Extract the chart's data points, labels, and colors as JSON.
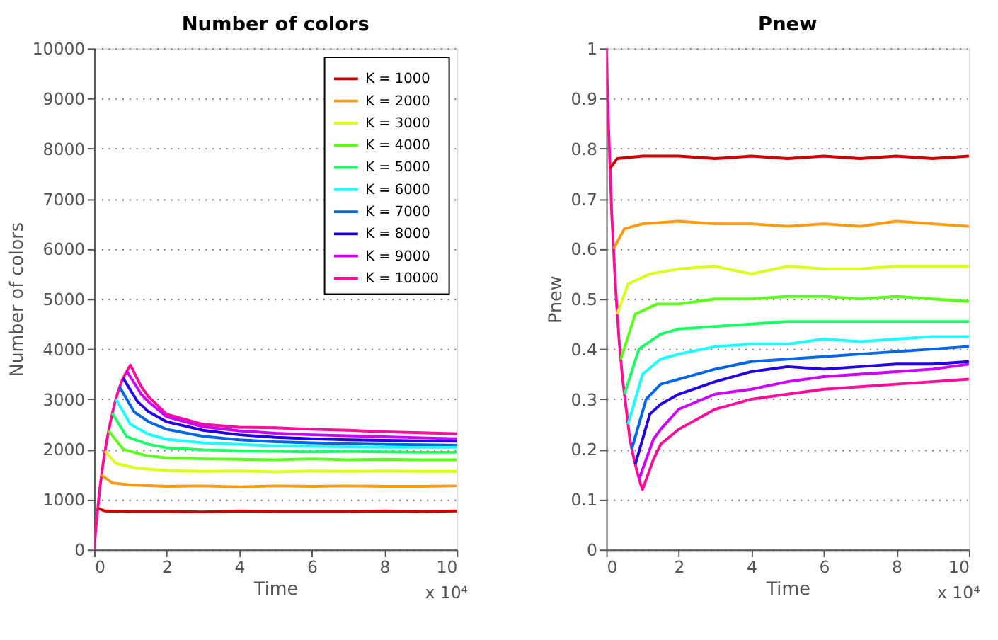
{
  "chart_data": [
    {
      "type": "line",
      "title": "Number of colors",
      "xlabel": "Time",
      "ylabel": "Number of colors",
      "annotations": [
        "x 10⁴"
      ],
      "xlim": [
        0,
        10
      ],
      "xticks": [
        0,
        2,
        4,
        6,
        8,
        10
      ],
      "ylim": [
        0,
        10000
      ],
      "yticks": [
        0,
        1000,
        2000,
        3000,
        4000,
        5000,
        6000,
        7000,
        8000,
        9000,
        10000
      ],
      "grid": "y",
      "legend": "top right",
      "line_style": "solid",
      "series": [
        {
          "name": "K = 1000",
          "color": "#cc0000",
          "x": [
            0.1,
            0.3,
            1,
            2,
            3,
            4,
            5,
            6,
            7,
            8,
            9,
            10
          ],
          "values": [
            820,
            770,
            760,
            760,
            750,
            770,
            760,
            760,
            760,
            770,
            760,
            770
          ]
        },
        {
          "name": "K = 2000",
          "color": "#ff9910",
          "x": [
            0.2,
            0.5,
            1,
            2,
            3,
            4,
            5,
            6,
            7,
            8,
            9,
            10
          ],
          "values": [
            1490,
            1330,
            1290,
            1260,
            1270,
            1250,
            1270,
            1260,
            1270,
            1260,
            1260,
            1270
          ]
        },
        {
          "name": "K = 3000",
          "color": "#d9ff1a",
          "x": [
            0.3,
            0.6,
            1.2,
            2,
            3,
            4,
            5,
            6,
            7,
            8,
            9,
            10
          ],
          "values": [
            1960,
            1720,
            1620,
            1580,
            1560,
            1570,
            1550,
            1570,
            1560,
            1570,
            1560,
            1560
          ]
        },
        {
          "name": "K = 4000",
          "color": "#5cff1a",
          "x": [
            0.4,
            0.8,
            1.4,
            2,
            3,
            4,
            5,
            6,
            7,
            8,
            9,
            10
          ],
          "values": [
            2370,
            2000,
            1880,
            1830,
            1810,
            1800,
            1790,
            1810,
            1790,
            1800,
            1790,
            1790
          ]
        },
        {
          "name": "K = 5000",
          "color": "#1aff66",
          "x": [
            0.5,
            0.9,
            1.5,
            2,
            3,
            4,
            5,
            6,
            7,
            8,
            9,
            10
          ],
          "values": [
            2720,
            2250,
            2100,
            2030,
            1990,
            1970,
            1960,
            1950,
            1960,
            1950,
            1940,
            1940
          ]
        },
        {
          "name": "K = 6000",
          "color": "#1affff",
          "x": [
            0.6,
            1,
            1.5,
            2,
            3,
            4,
            5,
            6,
            7,
            8,
            9,
            10
          ],
          "values": [
            3000,
            2500,
            2300,
            2200,
            2130,
            2100,
            2070,
            2060,
            2050,
            2040,
            2040,
            2040
          ]
        },
        {
          "name": "K = 7000",
          "color": "#0066e6",
          "x": [
            0.7,
            1.1,
            1.5,
            2,
            3,
            4,
            5,
            6,
            7,
            8,
            9,
            10
          ],
          "values": [
            3250,
            2750,
            2550,
            2400,
            2260,
            2190,
            2150,
            2130,
            2110,
            2100,
            2090,
            2080
          ]
        },
        {
          "name": "K = 8000",
          "color": "#2200e6",
          "x": [
            0.8,
            1.2,
            1.5,
            2,
            3,
            4,
            5,
            6,
            7,
            8,
            9,
            10
          ],
          "values": [
            3420,
            2950,
            2750,
            2550,
            2380,
            2290,
            2240,
            2210,
            2190,
            2180,
            2170,
            2160
          ]
        },
        {
          "name": "K = 9000",
          "color": "#cc00ff",
          "x": [
            0.9,
            1.3,
            1.5,
            2,
            3,
            4,
            5,
            6,
            7,
            8,
            9,
            10
          ],
          "values": [
            3560,
            3100,
            2950,
            2650,
            2450,
            2370,
            2320,
            2290,
            2270,
            2250,
            2230,
            2210
          ]
        },
        {
          "name": "K = 10000",
          "color": "#ff0d99",
          "x": [
            0,
            0.05,
            0.15,
            0.25,
            0.35,
            0.45,
            0.55,
            0.65,
            0.75,
            0.85,
            0.95,
            1,
            1.3,
            1.5,
            2,
            3,
            4,
            5,
            6,
            7,
            8,
            9,
            10
          ],
          "values": [
            0,
            450,
            1180,
            1740,
            2180,
            2550,
            2870,
            3130,
            3340,
            3490,
            3620,
            3680,
            3250,
            3050,
            2700,
            2500,
            2440,
            2430,
            2400,
            2380,
            2350,
            2330,
            2310
          ]
        }
      ]
    },
    {
      "type": "line",
      "title": "Pnew",
      "xlabel": "Time",
      "ylabel": "Pnew",
      "annotations": [
        "x 10⁴"
      ],
      "xlim": [
        0,
        10
      ],
      "xticks": [
        0,
        2,
        4,
        6,
        8,
        10
      ],
      "ylim": [
        0,
        1
      ],
      "yticks": [
        0,
        0.1,
        0.2,
        0.3,
        0.4,
        0.5,
        0.6,
        0.7,
        0.8,
        0.9,
        1
      ],
      "grid": "y",
      "legend": false,
      "line_style": "solid",
      "series": [
        {
          "color": "#cc0000",
          "x": [
            0.1,
            0.3,
            1,
            2,
            3,
            4,
            5,
            6,
            7,
            8,
            9,
            10
          ],
          "values": [
            0.76,
            0.78,
            0.785,
            0.785,
            0.78,
            0.785,
            0.78,
            0.785,
            0.78,
            0.785,
            0.78,
            0.785
          ]
        },
        {
          "color": "#ff9910",
          "x": [
            0.2,
            0.5,
            1,
            2,
            3,
            4,
            5,
            6,
            7,
            8,
            9,
            10
          ],
          "values": [
            0.6,
            0.64,
            0.65,
            0.655,
            0.65,
            0.65,
            0.645,
            0.65,
            0.645,
            0.655,
            0.65,
            0.645
          ]
        },
        {
          "color": "#d9ff1a",
          "x": [
            0.3,
            0.6,
            1.2,
            2,
            3,
            4,
            5,
            6,
            7,
            8,
            9,
            10
          ],
          "values": [
            0.47,
            0.53,
            0.55,
            0.56,
            0.565,
            0.55,
            0.565,
            0.56,
            0.56,
            0.565,
            0.565,
            0.565
          ]
        },
        {
          "color": "#5cff1a",
          "x": [
            0.4,
            0.8,
            1.4,
            2,
            3,
            4,
            5,
            6,
            7,
            8,
            9,
            10
          ],
          "values": [
            0.38,
            0.47,
            0.49,
            0.49,
            0.5,
            0.5,
            0.505,
            0.505,
            0.5,
            0.505,
            0.5,
            0.495
          ]
        },
        {
          "color": "#1aff66",
          "x": [
            0.5,
            0.9,
            1.5,
            2,
            3,
            4,
            5,
            6,
            7,
            8,
            9,
            10
          ],
          "values": [
            0.31,
            0.4,
            0.43,
            0.44,
            0.445,
            0.45,
            0.455,
            0.455,
            0.455,
            0.455,
            0.455,
            0.455
          ]
        },
        {
          "color": "#1affff",
          "x": [
            0.6,
            1,
            1.5,
            2,
            3,
            4,
            5,
            6,
            7,
            8,
            9,
            10
          ],
          "values": [
            0.25,
            0.35,
            0.38,
            0.39,
            0.405,
            0.41,
            0.41,
            0.42,
            0.415,
            0.42,
            0.425,
            0.425
          ]
        },
        {
          "color": "#0066e6",
          "x": [
            0.7,
            1.1,
            1.5,
            2,
            3,
            4,
            5,
            6,
            7,
            8,
            9,
            10
          ],
          "values": [
            0.2,
            0.3,
            0.33,
            0.34,
            0.36,
            0.375,
            0.38,
            0.385,
            0.39,
            0.395,
            0.4,
            0.405
          ]
        },
        {
          "color": "#2200e6",
          "x": [
            0.8,
            1.2,
            1.5,
            2,
            3,
            4,
            5,
            6,
            7,
            8,
            9,
            10
          ],
          "values": [
            0.17,
            0.27,
            0.29,
            0.31,
            0.335,
            0.355,
            0.365,
            0.36,
            0.365,
            0.37,
            0.37,
            0.375
          ]
        },
        {
          "color": "#cc00ff",
          "x": [
            0.9,
            1.3,
            1.5,
            2,
            3,
            4,
            5,
            6,
            7,
            8,
            9,
            10
          ],
          "values": [
            0.14,
            0.22,
            0.24,
            0.28,
            0.31,
            0.32,
            0.335,
            0.345,
            0.35,
            0.355,
            0.36,
            0.37
          ]
        },
        {
          "color": "#ff0d99",
          "x": [
            0,
            0.05,
            0.15,
            0.25,
            0.35,
            0.45,
            0.55,
            0.65,
            0.75,
            0.85,
            0.95,
            1,
            1.3,
            1.5,
            2,
            3,
            4,
            5,
            6,
            7,
            8,
            9,
            10
          ],
          "values": [
            1,
            0.87,
            0.67,
            0.53,
            0.42,
            0.34,
            0.28,
            0.22,
            0.185,
            0.155,
            0.13,
            0.12,
            0.18,
            0.21,
            0.24,
            0.28,
            0.3,
            0.31,
            0.32,
            0.325,
            0.33,
            0.335,
            0.34
          ]
        }
      ]
    }
  ]
}
